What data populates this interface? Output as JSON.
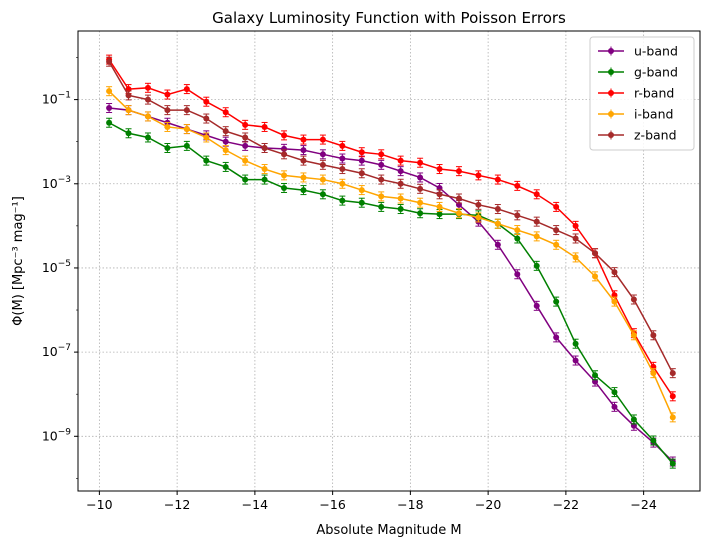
{
  "chart_data": {
    "type": "line",
    "title": "Galaxy Luminosity Function with Poisson Errors",
    "xlabel": "Absolute Magnitude M",
    "ylabel": "Φ(M) [Mpc⁻³ mag⁻¹]",
    "xlim": [
      -9.45,
      -25.45
    ],
    "ylim_exp": [
      -10.3,
      0.63
    ],
    "yscale": "log",
    "x_ticks": [
      -10,
      -12,
      -14,
      -16,
      -18,
      -20,
      -22,
      -24
    ],
    "x_tick_labels": [
      "−10",
      "−12",
      "−14",
      "−16",
      "−18",
      "−20",
      "−22",
      "−24"
    ],
    "y_tick_exponents": [
      -9,
      -7,
      -5,
      -3,
      -1
    ],
    "grid": true,
    "legend_position": "top-right",
    "x": [
      -10.25,
      -10.75,
      -11.25,
      -11.75,
      -12.25,
      -12.75,
      -13.25,
      -13.75,
      -14.25,
      -14.75,
      -15.25,
      -15.75,
      -16.25,
      -16.75,
      -17.25,
      -17.75,
      -18.25,
      -18.75,
      -19.25,
      -19.75,
      -20.25,
      -20.75,
      -21.25,
      -21.75,
      -22.25,
      -22.75,
      -23.25,
      -23.75,
      -24.25,
      -24.75
    ],
    "series": [
      {
        "name": "u-band",
        "color": "#800080",
        "values_exp": [
          -1.2,
          -1.25,
          -1.4,
          -1.55,
          -1.7,
          -1.85,
          -2.0,
          -2.1,
          -2.15,
          -2.17,
          -2.2,
          -2.3,
          -2.4,
          -2.45,
          -2.55,
          -2.7,
          -2.85,
          -3.1,
          -3.5,
          -3.9,
          -4.45,
          -5.15,
          -5.9,
          -6.65,
          -7.2,
          -7.7,
          -8.3,
          -8.75,
          -9.15,
          -9.6
        ]
      },
      {
        "name": "g-band",
        "color": "#008000",
        "values_exp": [
          -1.55,
          -1.8,
          -1.9,
          -2.15,
          -2.1,
          -2.45,
          -2.6,
          -2.9,
          -2.9,
          -3.1,
          -3.15,
          -3.25,
          -3.4,
          -3.45,
          -3.55,
          -3.6,
          -3.7,
          -3.72,
          -3.72,
          -3.75,
          -3.95,
          -4.3,
          -4.95,
          -5.8,
          -6.8,
          -7.55,
          -7.95,
          -8.6,
          -9.1,
          -9.65
        ]
      },
      {
        "name": "r-band",
        "color": "#ff0000",
        "values_exp": [
          -0.05,
          -0.75,
          -0.72,
          -0.88,
          -0.75,
          -1.05,
          -1.3,
          -1.6,
          -1.65,
          -1.85,
          -1.95,
          -1.95,
          -2.1,
          -2.25,
          -2.3,
          -2.45,
          -2.5,
          -2.65,
          -2.7,
          -2.8,
          -2.9,
          -3.05,
          -3.25,
          -3.55,
          -4.0,
          -4.65,
          -5.65,
          -6.55,
          -7.35,
          -8.05
        ]
      },
      {
        "name": "i-band",
        "color": "#ffa500",
        "values_exp": [
          -0.8,
          -1.25,
          -1.4,
          -1.65,
          -1.7,
          -1.9,
          -2.2,
          -2.45,
          -2.65,
          -2.8,
          -2.85,
          -2.9,
          -3.0,
          -3.15,
          -3.3,
          -3.35,
          -3.45,
          -3.55,
          -3.7,
          -3.8,
          -3.95,
          -4.1,
          -4.25,
          -4.45,
          -4.75,
          -5.2,
          -5.8,
          -6.6,
          -7.5,
          -8.55
        ]
      },
      {
        "name": "z-band",
        "color": "#a52a2a",
        "values_exp": [
          -0.1,
          -0.9,
          -1.0,
          -1.25,
          -1.25,
          -1.45,
          -1.75,
          -1.9,
          -2.15,
          -2.3,
          -2.45,
          -2.55,
          -2.65,
          -2.75,
          -2.9,
          -3.0,
          -3.12,
          -3.25,
          -3.35,
          -3.5,
          -3.6,
          -3.75,
          -3.9,
          -4.1,
          -4.3,
          -4.65,
          -5.1,
          -5.75,
          -6.6,
          -7.5
        ]
      }
    ]
  }
}
